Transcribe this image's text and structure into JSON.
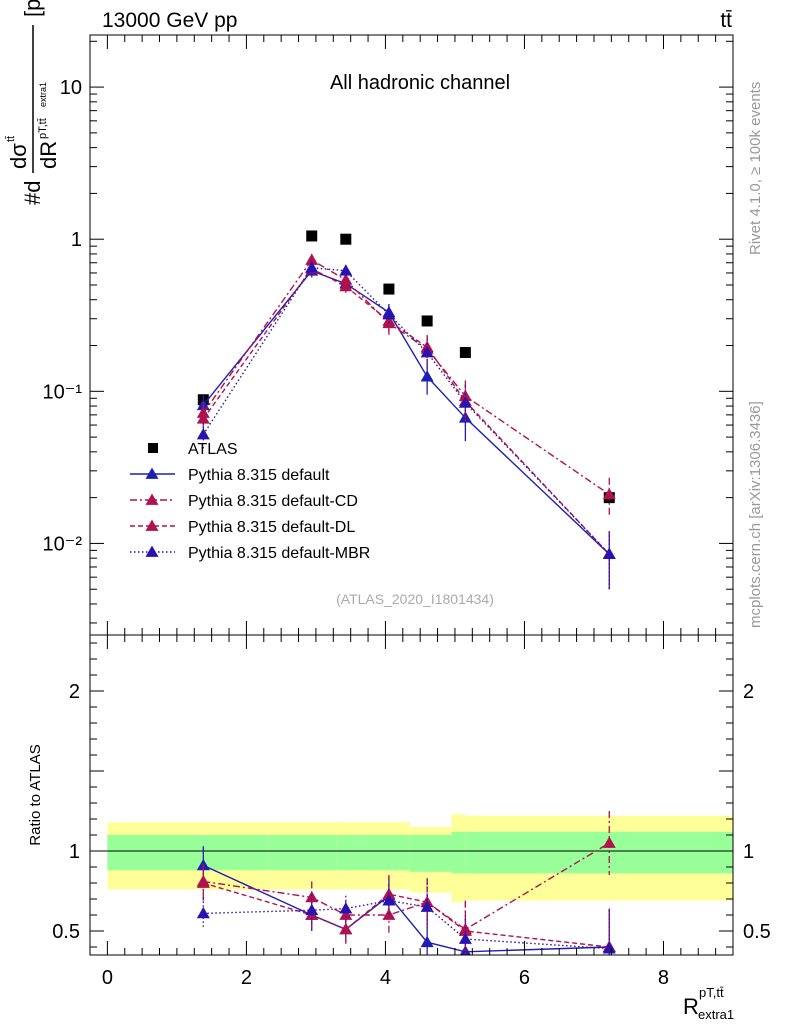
{
  "header": {
    "energy_label": "13000 GeV pp",
    "process_label": "tt̄"
  },
  "side_labels": {
    "rivet": "Rivet 4.1.0, ≥ 100k events",
    "mcplots": "mcplots.cern.ch [arXiv:1306.3436]"
  },
  "top_panel": {
    "title": "All hadronic channel",
    "analysis_id": "(ATLAS_2020_I1801434)",
    "y_unit": "[pb]"
  },
  "colors": {
    "data": "#000000",
    "default": "#1f1fb4",
    "cd": "#b0124f",
    "dl": "#b0124f",
    "mbr": "#2a12b0",
    "band_inner": "#99ff99",
    "band_outer": "#ffff99"
  },
  "chart_data": [
    {
      "type": "scatter",
      "panel": "main",
      "title": "All hadronic channel",
      "ylabel": "#d dσtt / dR pT,tt extra1 [pb]",
      "yscale": "log",
      "ylim": [
        0.0025,
        22
      ],
      "xlim": [
        -0.25,
        9.0
      ],
      "y_ticks": [
        {
          "value": 10,
          "label": "10"
        },
        {
          "value": 1,
          "label": "1"
        },
        {
          "value": 0.1,
          "label": "10⁻¹"
        },
        {
          "value": 0.01,
          "label": "10⁻²"
        }
      ],
      "bin_edges": [
        0,
        2.3,
        3.3,
        3.7,
        4.35,
        4.95,
        5.15,
        9.0
      ],
      "x": [
        1.38,
        2.94,
        3.43,
        4.05,
        4.6,
        5.15,
        7.22
      ],
      "series": [
        {
          "name": "ATLAS",
          "key": "data",
          "style": "data",
          "values": [
            0.088,
            1.05,
            1.0,
            0.47,
            0.29,
            0.18,
            0.02
          ]
        },
        {
          "name": "Pythia 8.315 default",
          "key": "default",
          "style": "solid",
          "values": [
            0.081,
            0.62,
            0.51,
            0.33,
            0.125,
            0.067,
            0.0085
          ],
          "errors": [
            0.015,
            0.06,
            0.05,
            0.045,
            0.03,
            0.02,
            0.0035
          ]
        },
        {
          "name": "Pythia 8.315 default-CD",
          "key": "cd",
          "style": "dashdot",
          "values": [
            0.072,
            0.73,
            0.54,
            0.28,
            0.19,
            0.093,
            0.021
          ],
          "errors": [
            0.013,
            0.07,
            0.05,
            0.045,
            0.04,
            0.025,
            0.006
          ]
        },
        {
          "name": "Pythia 8.315 default-DL",
          "key": "dl",
          "style": "dashed",
          "values": [
            0.066,
            0.64,
            0.49,
            0.29,
            0.195,
            0.086,
            0.0085
          ],
          "errors": [
            0.012,
            0.065,
            0.05,
            0.045,
            0.04,
            0.025,
            0.0035
          ]
        },
        {
          "name": "Pythia 8.315 default-MBR",
          "key": "mbr",
          "style": "dotted",
          "values": [
            0.052,
            0.65,
            0.62,
            0.32,
            0.18,
            0.084,
            0.0085
          ],
          "errors": [
            0.01,
            0.065,
            0.055,
            0.045,
            0.04,
            0.025,
            0.0035
          ]
        }
      ],
      "legend": [
        "ATLAS",
        "Pythia 8.315 default",
        "Pythia 8.315 default-CD",
        "Pythia 8.315 default-DL",
        "Pythia 8.315 default-MBR"
      ],
      "legend_position": "lower-left"
    },
    {
      "type": "scatter",
      "panel": "ratio",
      "ylabel": "Ratio to ATLAS",
      "ylim": [
        0.35,
        2.35
      ],
      "xlim": [
        -0.25,
        9.0
      ],
      "xlabel": "R pT,tt extra1",
      "x_ticks": [
        0,
        2,
        4,
        6,
        8
      ],
      "y_ticks": [
        0.5,
        1,
        2
      ],
      "reference_line": 1,
      "bands": {
        "bin_edges": [
          0,
          2.3,
          3.3,
          3.7,
          4.35,
          4.95,
          5.15,
          9.0
        ],
        "inner_low": [
          0.88,
          0.88,
          0.88,
          0.88,
          0.87,
          0.86,
          0.86
        ],
        "inner_high": [
          1.1,
          1.1,
          1.1,
          1.1,
          1.1,
          1.12,
          1.12
        ],
        "outer_low": [
          0.76,
          0.76,
          0.76,
          0.76,
          0.74,
          0.68,
          0.69
        ],
        "outer_high": [
          1.18,
          1.18,
          1.18,
          1.18,
          1.15,
          1.23,
          1.22
        ]
      },
      "x": [
        1.38,
        2.94,
        3.43,
        4.05,
        4.6,
        5.15,
        7.22
      ],
      "series": [
        {
          "name": "Pythia 8.315 default",
          "key": "default",
          "style": "solid",
          "values": [
            0.91,
            0.6,
            0.51,
            0.72,
            0.43,
            0.37,
            0.4
          ],
          "errors": [
            0.12,
            0.1,
            0.08,
            0.12,
            0.18,
            0.14,
            0.24
          ]
        },
        {
          "name": "Pythia 8.315 default-CD",
          "key": "cd",
          "style": "dashdot",
          "values": [
            0.81,
            0.71,
            0.6,
            0.6,
            0.68,
            0.51,
            1.05
          ],
          "errors": [
            0.11,
            0.1,
            0.09,
            0.12,
            0.15,
            0.18,
            0.2
          ]
        },
        {
          "name": "Pythia 8.315 default-DL",
          "key": "dl",
          "style": "dashed",
          "values": [
            0.8,
            0.6,
            0.51,
            0.73,
            0.68,
            0.5,
            0.4
          ],
          "errors": [
            0.11,
            0.1,
            0.09,
            0.12,
            0.15,
            0.18,
            0.24
          ]
        },
        {
          "name": "Pythia 8.315 default-MBR",
          "key": "mbr",
          "style": "dotted",
          "values": [
            0.61,
            0.63,
            0.64,
            0.69,
            0.65,
            0.45,
            0.39
          ],
          "errors": [
            0.1,
            0.1,
            0.08,
            0.1,
            0.15,
            0.15,
            0.24
          ]
        }
      ]
    }
  ]
}
